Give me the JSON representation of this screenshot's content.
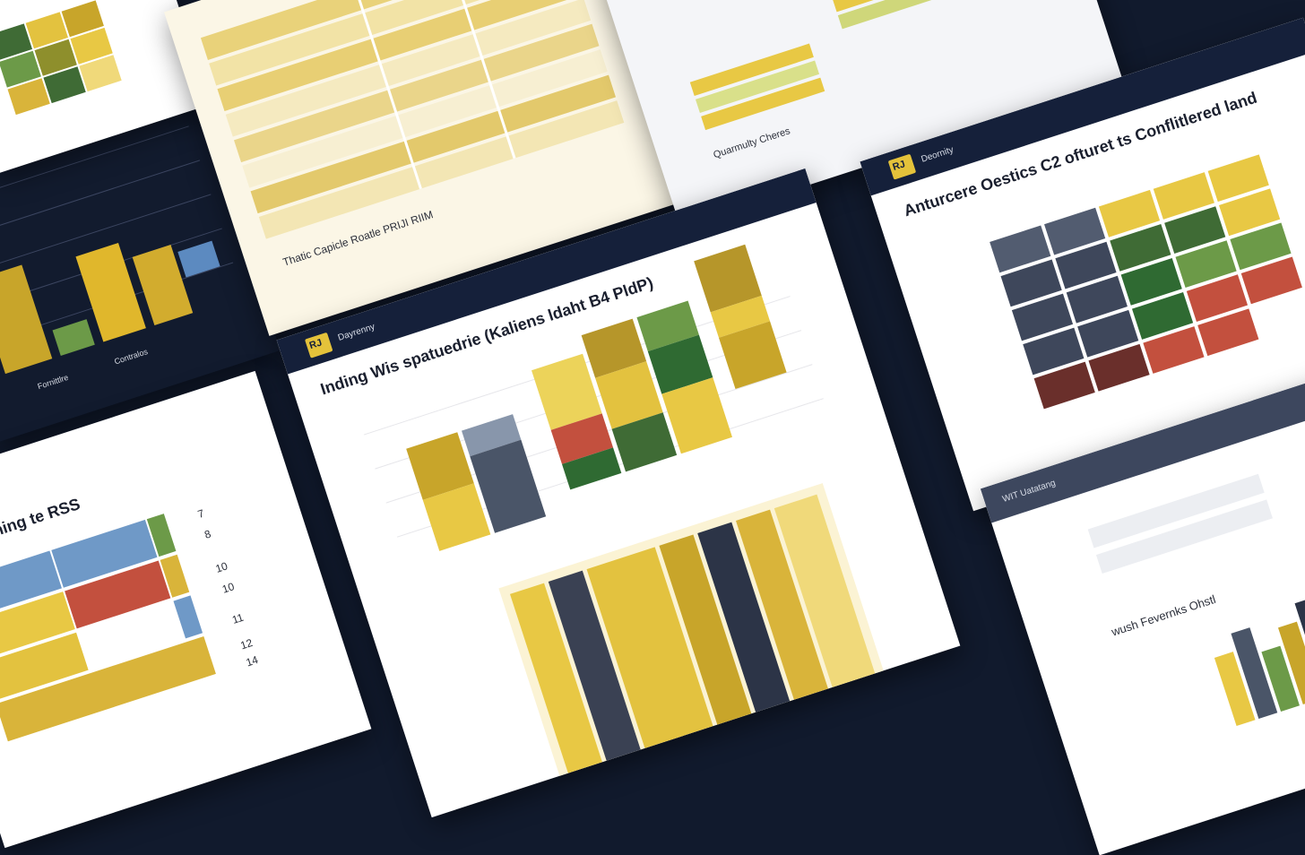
{
  "center_card": {
    "title": "Inding Wis spatuedrie (Kaliens ldaht B4 PldP)",
    "nav": [
      "Dayrenny"
    ],
    "chart_data": {
      "type": "bar",
      "categories": [],
      "series": []
    },
    "colors": {
      "gold": "#c8a52a",
      "yellow": "#e8c844",
      "slate": "#4a5568",
      "green": "#3f6b35",
      "red": "#c3503e",
      "olive": "#8e8f2c"
    }
  },
  "right_card": {
    "title": "Anturcere Oestics C2 ofturet ts Conflitlered land",
    "nav": [
      "Deornity"
    ]
  },
  "left_bottom_card": {
    "title": "Roardiching te RSS",
    "numbers": [
      "7",
      "8",
      "10",
      "10",
      "11",
      "12",
      "14"
    ]
  },
  "left_top_chart": {
    "legend": [
      "Fornittlre",
      "Contralos"
    ]
  },
  "top_center_sheet": {
    "caption": "Thatic Capicle Roatle PRIJI RIIM"
  },
  "top_right_sheet": {
    "caption": "Quarmulty Cheres"
  },
  "bottom_right_card": {
    "title": "WIT Uatatang",
    "subtitle": "wush Fevernks Ohstl"
  }
}
